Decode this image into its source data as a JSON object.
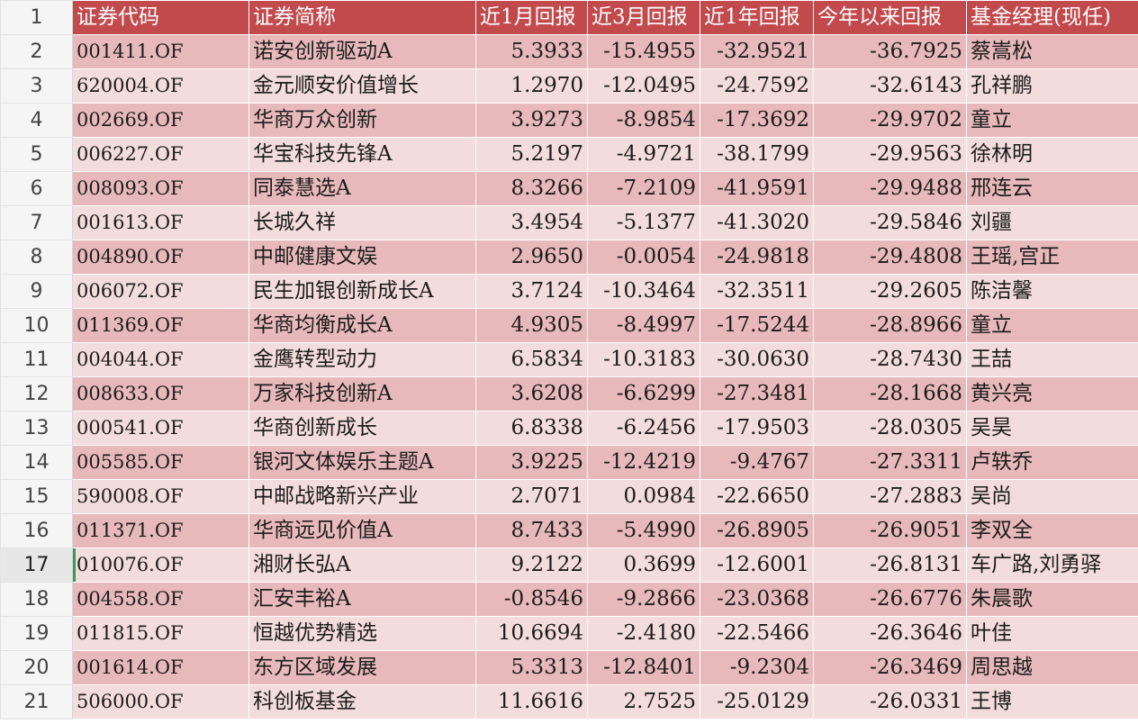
{
  "columns": [
    "证券代码",
    "证券简称",
    "近1月回报",
    "近3月回报",
    "近1年回报",
    "今年以来回报",
    "基金经理(现任)"
  ],
  "header_row_number": "1",
  "active_row_number": "17",
  "rows": [
    {
      "n": "2",
      "code": "001411.OF",
      "name": "诺安创新驱动A",
      "m1": "5.3933",
      "m3": "-15.4955",
      "y1": "-32.9521",
      "ytd": "-36.7925",
      "mgr": "蔡嵩松"
    },
    {
      "n": "3",
      "code": "620004.OF",
      "name": "金元顺安价值增长",
      "m1": "1.2970",
      "m3": "-12.0495",
      "y1": "-24.7592",
      "ytd": "-32.6143",
      "mgr": "孔祥鹏"
    },
    {
      "n": "4",
      "code": "002669.OF",
      "name": "华商万众创新",
      "m1": "3.9273",
      "m3": "-8.9854",
      "y1": "-17.3692",
      "ytd": "-29.9702",
      "mgr": "童立"
    },
    {
      "n": "5",
      "code": "006227.OF",
      "name": "华宝科技先锋A",
      "m1": "5.2197",
      "m3": "-4.9721",
      "y1": "-38.1799",
      "ytd": "-29.9563",
      "mgr": "徐林明"
    },
    {
      "n": "6",
      "code": "008093.OF",
      "name": "同泰慧选A",
      "m1": "8.3266",
      "m3": "-7.2109",
      "y1": "-41.9591",
      "ytd": "-29.9488",
      "mgr": "邢连云"
    },
    {
      "n": "7",
      "code": "001613.OF",
      "name": "长城久祥",
      "m1": "3.4954",
      "m3": "-5.1377",
      "y1": "-41.3020",
      "ytd": "-29.5846",
      "mgr": "刘疆"
    },
    {
      "n": "8",
      "code": "004890.OF",
      "name": "中邮健康文娱",
      "m1": "2.9650",
      "m3": "-0.0054",
      "y1": "-24.9818",
      "ytd": "-29.4808",
      "mgr": "王瑶,宫正"
    },
    {
      "n": "9",
      "code": "006072.OF",
      "name": "民生加银创新成长A",
      "m1": "3.7124",
      "m3": "-10.3464",
      "y1": "-32.3511",
      "ytd": "-29.2605",
      "mgr": "陈洁馨"
    },
    {
      "n": "10",
      "code": "011369.OF",
      "name": "华商均衡成长A",
      "m1": "4.9305",
      "m3": "-8.4997",
      "y1": "-17.5244",
      "ytd": "-28.8966",
      "mgr": "童立"
    },
    {
      "n": "11",
      "code": "004044.OF",
      "name": "金鹰转型动力",
      "m1": "6.5834",
      "m3": "-10.3183",
      "y1": "-30.0630",
      "ytd": "-28.7430",
      "mgr": "王喆"
    },
    {
      "n": "12",
      "code": "008633.OF",
      "name": "万家科技创新A",
      "m1": "3.6208",
      "m3": "-6.6299",
      "y1": "-27.3481",
      "ytd": "-28.1668",
      "mgr": "黄兴亮"
    },
    {
      "n": "13",
      "code": "000541.OF",
      "name": "华商创新成长",
      "m1": "6.8338",
      "m3": "-6.2456",
      "y1": "-17.9503",
      "ytd": "-28.0305",
      "mgr": "吴昊"
    },
    {
      "n": "14",
      "code": "005585.OF",
      "name": "银河文体娱乐主题A",
      "m1": "3.9225",
      "m3": "-12.4219",
      "y1": "-9.4767",
      "ytd": "-27.3311",
      "mgr": "卢轶乔"
    },
    {
      "n": "15",
      "code": "590008.OF",
      "name": "中邮战略新兴产业",
      "m1": "2.7071",
      "m3": "0.0984",
      "y1": "-22.6650",
      "ytd": "-27.2883",
      "mgr": "吴尚"
    },
    {
      "n": "16",
      "code": "011371.OF",
      "name": "华商远见价值A",
      "m1": "8.7433",
      "m3": "-5.4990",
      "y1": "-26.8905",
      "ytd": "-26.9051",
      "mgr": "李双全"
    },
    {
      "n": "17",
      "code": "010076.OF",
      "name": "湘财长弘A",
      "m1": "9.2122",
      "m3": "0.3699",
      "y1": "-12.6001",
      "ytd": "-26.8131",
      "mgr": "车广路,刘勇驿"
    },
    {
      "n": "18",
      "code": "004558.OF",
      "name": "汇安丰裕A",
      "m1": "-0.8546",
      "m3": "-9.2866",
      "y1": "-23.0368",
      "ytd": "-26.6776",
      "mgr": "朱晨歌"
    },
    {
      "n": "19",
      "code": "011815.OF",
      "name": "恒越优势精选",
      "m1": "10.6694",
      "m3": "-2.4180",
      "y1": "-22.5466",
      "ytd": "-26.3646",
      "mgr": "叶佳"
    },
    {
      "n": "20",
      "code": "001614.OF",
      "name": "东方区域发展",
      "m1": "5.3313",
      "m3": "-12.8401",
      "y1": "-9.2304",
      "ytd": "-26.3469",
      "mgr": "周思越"
    },
    {
      "n": "21",
      "code": "506000.OF",
      "name": "科创板基金",
      "m1": "11.6616",
      "m3": "2.7525",
      "y1": "-25.0129",
      "ytd": "-26.0331",
      "mgr": "王博"
    }
  ],
  "colors": {
    "header_bg": "#c24a4d",
    "row_dark": "#e8b9ba",
    "row_light": "#f3dcdc",
    "selection_marker": "#2e9e5b"
  }
}
